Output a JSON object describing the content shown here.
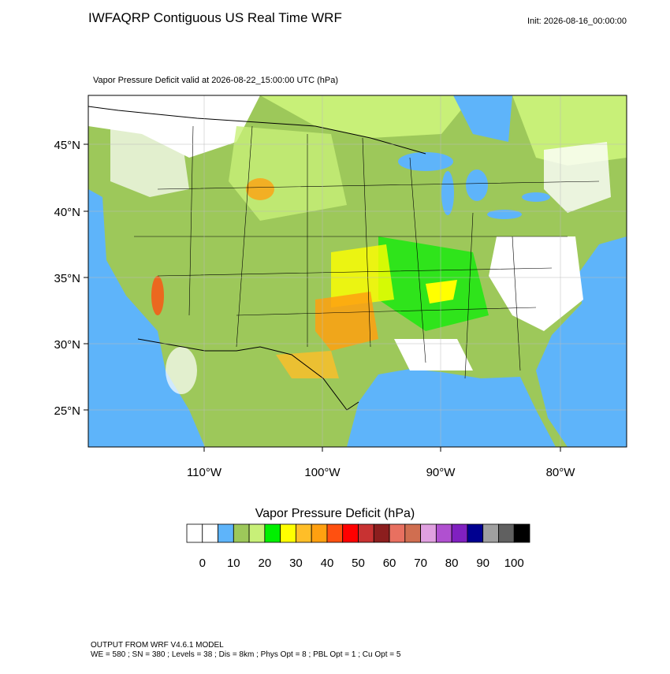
{
  "header": {
    "title": "IWFAQRP Contiguous US Real Time WRF",
    "init": "Init: 2026-08-16_00:00:00",
    "subtitle": "Vapor Pressure Deficit valid at 2026-08-22_15:00:00 UTC   (hPa)"
  },
  "map": {
    "lat_labels": [
      "45°N",
      "40°N",
      "35°N",
      "30°N",
      "25°N"
    ],
    "lon_labels": [
      "110°W",
      "100°W",
      "90°W",
      "80°W"
    ]
  },
  "colorbar": {
    "title": "Vapor Pressure Deficit  (hPa)",
    "colors": [
      "#ffffff",
      "#ffffff",
      "#5eb4fa",
      "#9dc85a",
      "#c8f078",
      "#00f000",
      "#ffff00",
      "#ffbe28",
      "#ffa010",
      "#ff5010",
      "#ff0000",
      "#c83232",
      "#8c1e1e",
      "#e87060",
      "#d06e50",
      "#e0a0e0",
      "#b050d0",
      "#8020c0",
      "#000090",
      "#a0a0a0",
      "#606060",
      "#000000"
    ],
    "labels": [
      "0",
      "10",
      "20",
      "30",
      "40",
      "50",
      "60",
      "70",
      "80",
      "90",
      "100"
    ]
  },
  "footer": {
    "line1": "OUTPUT FROM WRF V4.6.1 MODEL",
    "line2": "WE = 580 ; SN = 380 ; Levels = 38 ; Dis = 8km ; Phys Opt = 8 ; PBL Opt = 1 ; Cu Opt = 5"
  }
}
